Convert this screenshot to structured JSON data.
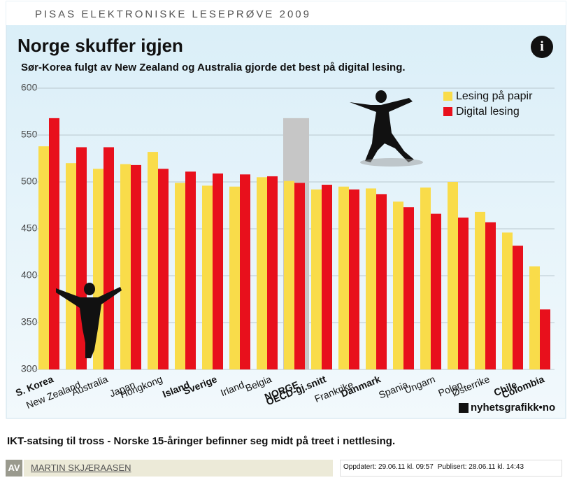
{
  "header": {
    "kicker": "PISAS ELEKTRONISKE LESEPRØVE 2009",
    "logo": "nyhetsgrafikk•no"
  },
  "chart_data": {
    "type": "bar",
    "title": "Norge skuffer igjen",
    "subtitle": "Sør-Korea fulgt av New Zealand og Australia gjorde det best på digital lesing.",
    "categories": [
      "S. Korea",
      "New Zealand",
      "Australia",
      "Japan",
      "Hongkong",
      "Island",
      "Sverige",
      "Irland",
      "Belgia",
      "NORGE",
      "OECD-gj.snitt",
      "Frankrike",
      "Danmark",
      "Spania",
      "Ungarn",
      "Polen",
      "Østerrike",
      "Chile",
      "Colombia"
    ],
    "emphasis": [
      true,
      false,
      false,
      false,
      false,
      true,
      true,
      false,
      false,
      true,
      true,
      false,
      true,
      false,
      false,
      false,
      false,
      true,
      true
    ],
    "highlight": 9,
    "series": [
      {
        "name": "Lesing på papir",
        "color": "#f9dc4a",
        "values": [
          538,
          520,
          514,
          519,
          532,
          499,
          496,
          495,
          505,
          501,
          492,
          495,
          493,
          479,
          494,
          500,
          468,
          446,
          410
        ]
      },
      {
        "name": "Digital lesing",
        "color": "#e8101c",
        "values": [
          568,
          537,
          537,
          518,
          514,
          511,
          509,
          508,
          506,
          499,
          497,
          492,
          487,
          473,
          466,
          462,
          457,
          432,
          364
        ]
      }
    ],
    "ylim": [
      300,
      600
    ],
    "yticks": [
      300,
      350,
      400,
      450,
      500,
      550,
      600
    ],
    "grid": true,
    "legend": "top-right"
  },
  "caption": "IKT-satsing til tross - Norske 15-åringer befinner seg midt på treet i nettlesing.",
  "byline": {
    "prefix": "AV",
    "author": "MARTIN SKJÆRAASEN",
    "updated": "Oppdatert: 29.06.11 kl. 09:57",
    "published": "Publisert: 28.06.11 kl. 14:43"
  }
}
